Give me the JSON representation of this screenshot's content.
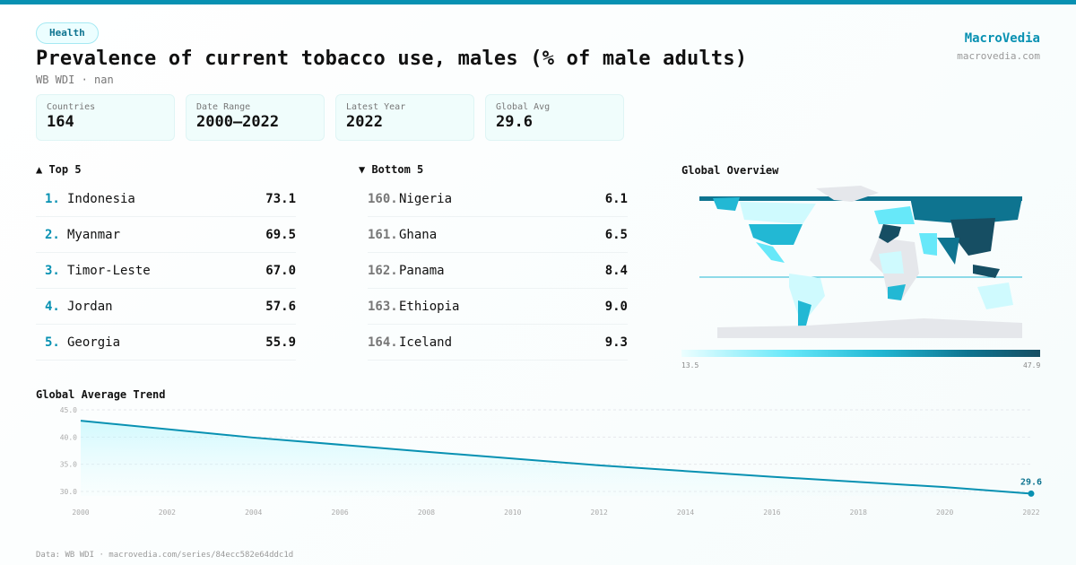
{
  "category": "Health",
  "title": "Prevalence of current tobacco use, males (% of male adults)",
  "subtitle": "WB WDI · nan",
  "brand": {
    "name": "MacroVedia",
    "url": "macrovedia.com"
  },
  "stats": [
    {
      "label": "Countries",
      "value": "164"
    },
    {
      "label": "Date Range",
      "value": "2000–2022"
    },
    {
      "label": "Latest Year",
      "value": "2022"
    },
    {
      "label": "Global Avg",
      "value": "29.6"
    }
  ],
  "top": {
    "heading": "▲ Top 5",
    "items": [
      {
        "rank": "1.",
        "name": "Indonesia",
        "value": "73.1"
      },
      {
        "rank": "2.",
        "name": "Myanmar",
        "value": "69.5"
      },
      {
        "rank": "3.",
        "name": "Timor-Leste",
        "value": "67.0"
      },
      {
        "rank": "4.",
        "name": "Jordan",
        "value": "57.6"
      },
      {
        "rank": "5.",
        "name": "Georgia",
        "value": "55.9"
      }
    ]
  },
  "bottom": {
    "heading": "▼ Bottom 5",
    "items": [
      {
        "rank": "160.",
        "name": "Nigeria",
        "value": "6.1"
      },
      {
        "rank": "161.",
        "name": "Ghana",
        "value": "6.5"
      },
      {
        "rank": "162.",
        "name": "Panama",
        "value": "8.4"
      },
      {
        "rank": "163.",
        "name": "Ethiopia",
        "value": "9.0"
      },
      {
        "rank": "164.",
        "name": "Iceland",
        "value": "9.3"
      }
    ]
  },
  "map": {
    "heading": "Global Overview",
    "legend_min": "13.5",
    "legend_max": "47.9",
    "colors": [
      "#ecfeff",
      "#67e8f9",
      "#22b8d4",
      "#0e7490",
      "#164e63"
    ],
    "no_data_color": "#e5e7eb"
  },
  "chart_data": {
    "type": "area",
    "title": "Global Average Trend",
    "x": [
      2000,
      2004,
      2008,
      2012,
      2016,
      2020,
      2022
    ],
    "values": [
      43.0,
      39.9,
      37.3,
      34.8,
      32.7,
      30.8,
      29.6
    ],
    "xticks": [
      "2000",
      "2002",
      "2004",
      "2006",
      "2008",
      "2010",
      "2012",
      "2014",
      "2016",
      "2018",
      "2020",
      "2022"
    ],
    "yticks": [
      "30.0",
      "35.0",
      "40.0",
      "45.0"
    ],
    "ylim": [
      28,
      45
    ],
    "last_label": "29.6",
    "grid": true,
    "color": "#0891b2"
  },
  "footer": "Data: WB WDI · macrovedia.com/series/84ecc582e64ddc1d"
}
